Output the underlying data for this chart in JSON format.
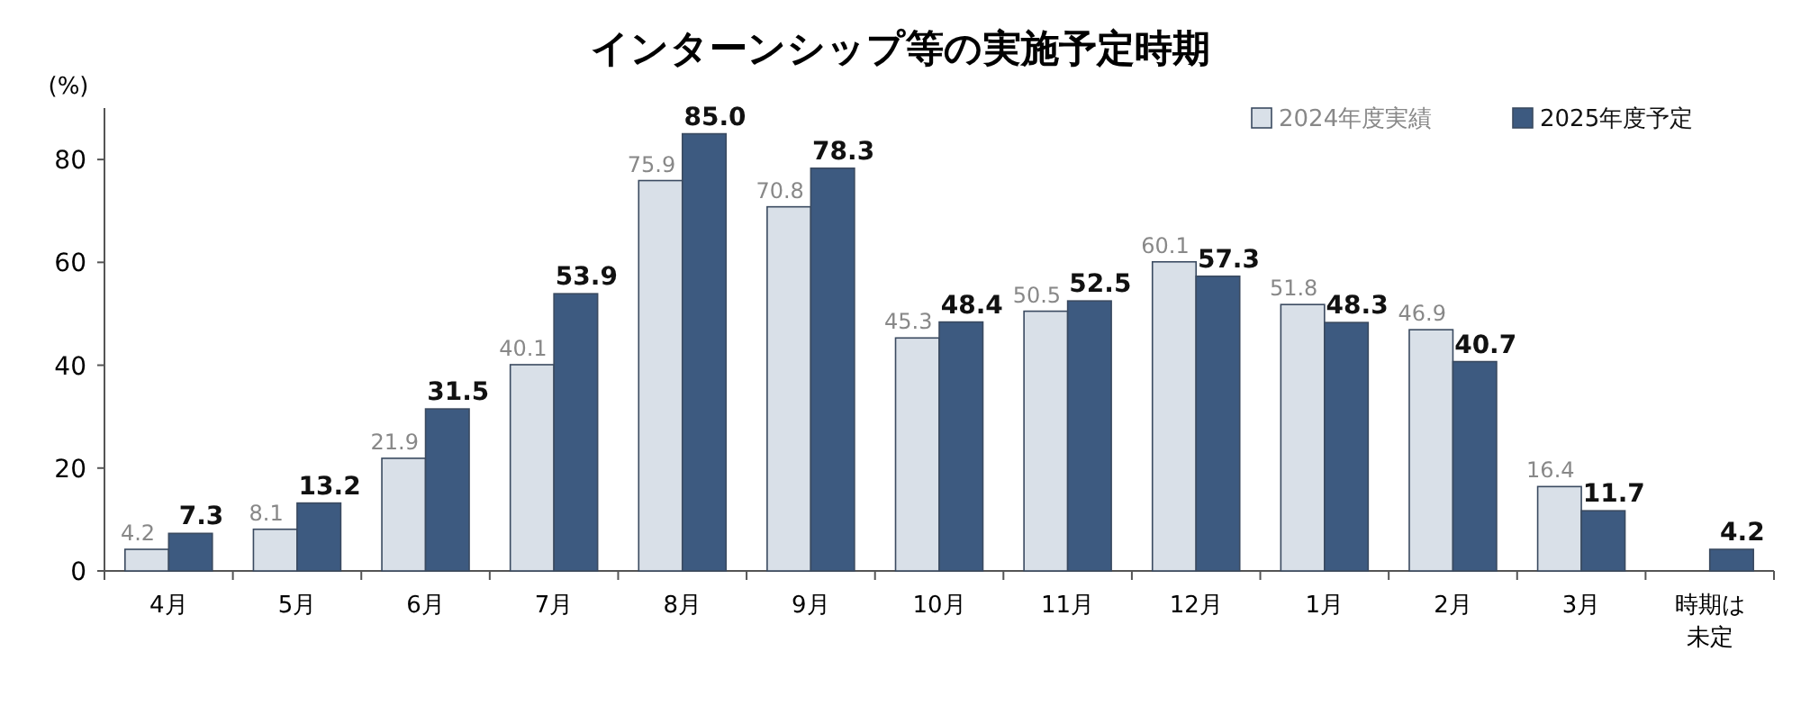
{
  "chart_data": {
    "type": "bar",
    "title": "インターンシップ等の実施予定時期",
    "ylabel": "(%)",
    "categories": [
      "4月",
      "5月",
      "6月",
      "7月",
      "8月",
      "9月",
      "10月",
      "11月",
      "12月",
      "1月",
      "2月",
      "3月",
      "時期は未定"
    ],
    "series": [
      {
        "name": "2024年度実績",
        "color": "#d9e0e8",
        "values": [
          4.2,
          8.1,
          21.9,
          40.1,
          75.9,
          70.8,
          45.3,
          50.5,
          60.1,
          51.8,
          46.9,
          16.4,
          null
        ],
        "value_labels": [
          "4.2",
          "8.1",
          "21.9",
          "40.1",
          "75.9",
          "70.8",
          "45.3",
          "50.5",
          "60.1",
          "51.8",
          "46.9",
          "16.4",
          null
        ]
      },
      {
        "name": "2025年度予定",
        "color": "#3d5a80",
        "values": [
          7.3,
          13.2,
          31.5,
          53.9,
          85.0,
          78.3,
          48.4,
          52.5,
          57.3,
          48.3,
          40.7,
          11.7,
          4.2
        ],
        "value_labels": [
          "7.3",
          "13.2",
          "31.5",
          "53.9",
          "85.0",
          "78.3",
          "48.4",
          "52.5",
          "57.3",
          "48.3",
          "40.7",
          "11.7",
          "4.2"
        ]
      }
    ],
    "ylim": [
      0,
      90
    ],
    "yticks": [
      0,
      20,
      40,
      60,
      80
    ],
    "grid": false,
    "legend": "top right"
  }
}
